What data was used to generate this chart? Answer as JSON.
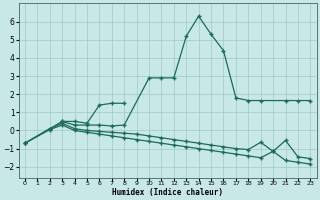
{
  "xlabel": "Humidex (Indice chaleur)",
  "bg_color": "#c8e8e8",
  "line_color": "#1a6b5a",
  "xlim": [
    -0.5,
    23.5
  ],
  "ylim": [
    -2.6,
    7.0
  ],
  "yticks": [
    -2,
    -1,
    0,
    1,
    2,
    3,
    4,
    5,
    6
  ],
  "xticks": [
    0,
    1,
    2,
    3,
    4,
    5,
    6,
    7,
    8,
    9,
    10,
    11,
    12,
    13,
    14,
    15,
    16,
    17,
    18,
    19,
    20,
    21,
    22,
    23
  ],
  "line1_x": [
    0,
    2,
    3,
    4,
    5,
    6,
    7,
    8,
    10,
    11,
    12,
    13,
    14,
    15,
    16,
    17,
    18,
    19,
    21,
    22,
    23
  ],
  "line1_y": [
    -0.7,
    0.1,
    0.5,
    0.3,
    0.3,
    0.3,
    0.25,
    0.3,
    2.9,
    2.9,
    2.9,
    5.2,
    6.3,
    5.3,
    4.4,
    1.8,
    1.65,
    1.65,
    1.65,
    1.65,
    1.65
  ],
  "line2_x": [
    3,
    4,
    5,
    6,
    7,
    8
  ],
  "line2_y": [
    0.5,
    0.5,
    0.4,
    1.4,
    1.5,
    1.5
  ],
  "line3_x": [
    0,
    2,
    3,
    4,
    5,
    6,
    7,
    8,
    9,
    10,
    11,
    12,
    13,
    14,
    15,
    16,
    17,
    18,
    19,
    20,
    21,
    22,
    23
  ],
  "line3_y": [
    -0.7,
    0.1,
    0.4,
    0.1,
    0.0,
    -0.05,
    -0.1,
    -0.15,
    -0.2,
    -0.3,
    -0.4,
    -0.5,
    -0.6,
    -0.7,
    -0.8,
    -0.9,
    -1.0,
    -1.05,
    -0.65,
    -1.15,
    -0.55,
    -1.45,
    -1.55
  ],
  "line4_x": [
    0,
    2,
    3,
    4,
    5,
    6,
    7,
    8,
    9,
    10,
    11,
    12,
    13,
    14,
    15,
    16,
    17,
    18,
    19,
    20,
    21,
    22,
    23
  ],
  "line4_y": [
    -0.7,
    0.05,
    0.3,
    0.0,
    -0.1,
    -0.2,
    -0.3,
    -0.4,
    -0.5,
    -0.6,
    -0.7,
    -0.8,
    -0.9,
    -1.0,
    -1.1,
    -1.2,
    -1.3,
    -1.4,
    -1.5,
    -1.15,
    -1.65,
    -1.75,
    -1.85
  ]
}
